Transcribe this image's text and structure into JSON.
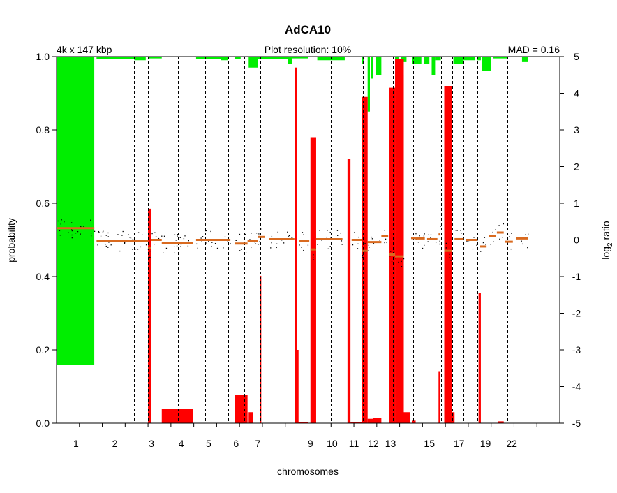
{
  "chart_data": {
    "type": "bar",
    "title": "AdCA10",
    "subtitle_left": "4k x 147 kbp",
    "subtitle_center": "Plot resolution: 10%",
    "subtitle_right": "MAD = 0.16",
    "xlabel": "chromosomes",
    "ylabel_left": "probability",
    "ylabel_right_base": "log",
    "ylabel_right_sub": "2",
    "ylabel_right_rest": " ratio",
    "ylim_left": [
      0,
      1
    ],
    "ylim_right": [
      -5,
      5
    ],
    "left_ticks": [
      "0.0",
      "0.2",
      "0.4",
      "0.6",
      "0.8",
      "1.0"
    ],
    "left_tick_values": [
      0,
      0.2,
      0.4,
      0.6,
      0.8,
      1.0
    ],
    "right_ticks": [
      "-5",
      "-4",
      "-3",
      "-2",
      "-1",
      "0",
      "1",
      "2",
      "3",
      "4",
      "5"
    ],
    "right_tick_values": [
      -5,
      -4,
      -3,
      -2,
      -1,
      0,
      1,
      2,
      3,
      4,
      5
    ],
    "chromosome_axis_total": 22,
    "chromosome_bounds": [
      0,
      1.7,
      3.4,
      4.0,
      5.3,
      6.5,
      7.5,
      8.2,
      8.9,
      9.5,
      10.8,
      11.4,
      12.0,
      12.9,
      13.4,
      14.7,
      15.6,
      16.8,
      17.3,
      17.8,
      18.4,
      19.2,
      19.7,
      20.2,
      20.6
    ],
    "chromosome_labels": [
      {
        "label": "1",
        "pos": 0.85
      },
      {
        "label": "2",
        "pos": 2.55
      },
      {
        "label": "3",
        "pos": 4.15
      },
      {
        "label": "4",
        "pos": 5.45
      },
      {
        "label": "5",
        "pos": 6.65
      },
      {
        "label": "6",
        "pos": 7.85
      },
      {
        "label": "7",
        "pos": 8.8
      },
      {
        "label": "9",
        "pos": 11.1
      },
      {
        "label": "10",
        "pos": 12.05
      },
      {
        "label": "11",
        "pos": 13.0
      },
      {
        "label": "12",
        "pos": 13.85
      },
      {
        "label": "13",
        "pos": 14.6
      },
      {
        "label": "15",
        "pos": 16.3
      },
      {
        "label": "17",
        "pos": 17.6
      },
      {
        "label": "19",
        "pos": 18.75
      },
      {
        "label": "22",
        "pos": 19.9
      }
    ],
    "loss_probability": [
      {
        "from": 0.0,
        "to": 1.65,
        "value": 0.84
      },
      {
        "from": 1.75,
        "to": 3.4,
        "value": 0.007
      },
      {
        "from": 3.4,
        "to": 3.9,
        "value": 0.01
      },
      {
        "from": 4.0,
        "to": 4.6,
        "value": 0.005
      },
      {
        "from": 6.1,
        "to": 7.2,
        "value": 0.007
      },
      {
        "from": 7.2,
        "to": 7.5,
        "value": 0.01
      },
      {
        "from": 7.8,
        "to": 8.05,
        "value": 0.007
      },
      {
        "from": 8.4,
        "to": 8.8,
        "value": 0.03
      },
      {
        "from": 8.8,
        "to": 9.3,
        "value": 0.007
      },
      {
        "from": 9.3,
        "to": 10.1,
        "value": 0.007
      },
      {
        "from": 10.1,
        "to": 10.3,
        "value": 0.02
      },
      {
        "from": 10.3,
        "to": 11.0,
        "value": 0.005
      },
      {
        "from": 11.4,
        "to": 12.6,
        "value": 0.01
      },
      {
        "from": 13.35,
        "to": 13.45,
        "value": 0.02
      },
      {
        "from": 13.6,
        "to": 13.7,
        "value": 0.15
      },
      {
        "from": 13.75,
        "to": 13.85,
        "value": 0.06
      },
      {
        "from": 13.95,
        "to": 14.2,
        "value": 0.05
      },
      {
        "from": 14.8,
        "to": 14.95,
        "value": 0.015
      },
      {
        "from": 15.05,
        "to": 15.3,
        "value": 0.015
      },
      {
        "from": 15.55,
        "to": 15.95,
        "value": 0.02
      },
      {
        "from": 16.05,
        "to": 16.3,
        "value": 0.02
      },
      {
        "from": 16.4,
        "to": 16.55,
        "value": 0.05
      },
      {
        "from": 16.55,
        "to": 16.8,
        "value": 0.01
      },
      {
        "from": 17.35,
        "to": 17.8,
        "value": 0.02
      },
      {
        "from": 17.8,
        "to": 18.3,
        "value": 0.01
      },
      {
        "from": 18.4,
        "to": 18.55,
        "value": 0.01
      },
      {
        "from": 18.6,
        "to": 19.0,
        "value": 0.04
      },
      {
        "from": 19.1,
        "to": 19.7,
        "value": 0.005
      },
      {
        "from": 20.35,
        "to": 20.6,
        "value": 0.015
      }
    ],
    "gain_probability": [
      {
        "from": 4.0,
        "to": 4.15,
        "value": 0.585
      },
      {
        "from": 4.6,
        "to": 5.95,
        "value": 0.04
      },
      {
        "from": 7.8,
        "to": 8.35,
        "value": 0.077
      },
      {
        "from": 8.4,
        "to": 8.6,
        "value": 0.03
      },
      {
        "from": 8.88,
        "to": 8.95,
        "value": 0.402
      },
      {
        "from": 10.45,
        "to": 10.52,
        "value": 0.97
      },
      {
        "from": 10.52,
        "to": 10.58,
        "value": 0.2
      },
      {
        "from": 10.5,
        "to": 11.0,
        "value": 0.003
      },
      {
        "from": 11.1,
        "to": 11.35,
        "value": 0.78
      },
      {
        "from": 12.72,
        "to": 12.85,
        "value": 0.72
      },
      {
        "from": 12.85,
        "to": 13.35,
        "value": 0.003
      },
      {
        "from": 13.35,
        "to": 13.6,
        "value": 0.89
      },
      {
        "from": 13.6,
        "to": 13.85,
        "value": 0.012
      },
      {
        "from": 13.85,
        "to": 14.2,
        "value": 0.014
      },
      {
        "from": 14.55,
        "to": 14.8,
        "value": 0.915
      },
      {
        "from": 14.8,
        "to": 15.18,
        "value": 0.993
      },
      {
        "from": 15.18,
        "to": 15.45,
        "value": 0.03
      },
      {
        "from": 15.55,
        "to": 15.7,
        "value": 0.007
      },
      {
        "from": 16.7,
        "to": 16.78,
        "value": 0.14
      },
      {
        "from": 16.95,
        "to": 17.3,
        "value": 0.92
      },
      {
        "from": 17.3,
        "to": 17.4,
        "value": 0.03
      },
      {
        "from": 18.45,
        "to": 18.55,
        "value": 0.355
      },
      {
        "from": 19.3,
        "to": 19.55,
        "value": 0.005
      }
    ],
    "gain_spikes": [
      {
        "pos": 10.45,
        "value": 0.97
      },
      {
        "pos": 15.15,
        "value": 0.95
      }
    ],
    "segments_log2": [
      {
        "from": 0.0,
        "to": 1.65,
        "value": 0.32
      },
      {
        "from": 1.75,
        "to": 4.0,
        "value": -0.02
      },
      {
        "from": 4.0,
        "to": 4.15,
        "value": -0.22
      },
      {
        "from": 4.15,
        "to": 4.6,
        "value": 0.0
      },
      {
        "from": 4.6,
        "to": 5.95,
        "value": -0.08
      },
      {
        "from": 6.1,
        "to": 7.6,
        "value": 0.0
      },
      {
        "from": 7.8,
        "to": 8.35,
        "value": -0.1
      },
      {
        "from": 8.35,
        "to": 8.8,
        "value": -0.02
      },
      {
        "from": 8.8,
        "to": 9.1,
        "value": 0.08
      },
      {
        "from": 9.3,
        "to": 10.4,
        "value": 0.02
      },
      {
        "from": 10.6,
        "to": 11.05,
        "value": -0.02
      },
      {
        "from": 11.1,
        "to": 11.35,
        "value": -0.26
      },
      {
        "from": 11.35,
        "to": 12.5,
        "value": 0.02
      },
      {
        "from": 12.9,
        "to": 13.35,
        "value": 0.0
      },
      {
        "from": 13.35,
        "to": 13.6,
        "value": -0.3
      },
      {
        "from": 13.6,
        "to": 14.2,
        "value": -0.06
      },
      {
        "from": 14.2,
        "to": 14.5,
        "value": 0.1
      },
      {
        "from": 14.55,
        "to": 14.8,
        "value": -0.4
      },
      {
        "from": 14.8,
        "to": 15.18,
        "value": -0.45
      },
      {
        "from": 15.5,
        "to": 15.7,
        "value": 0.05
      },
      {
        "from": 15.7,
        "to": 16.1,
        "value": 0.04
      },
      {
        "from": 16.2,
        "to": 16.65,
        "value": 0.02
      },
      {
        "from": 16.7,
        "to": 16.78,
        "value": 0.15
      },
      {
        "from": 16.95,
        "to": 17.3,
        "value": -0.3
      },
      {
        "from": 17.4,
        "to": 17.8,
        "value": 0.02
      },
      {
        "from": 17.9,
        "to": 18.4,
        "value": 0.0
      },
      {
        "from": 18.5,
        "to": 18.8,
        "value": -0.18
      },
      {
        "from": 18.9,
        "to": 19.2,
        "value": 0.1
      },
      {
        "from": 19.25,
        "to": 19.55,
        "value": 0.2
      },
      {
        "from": 19.6,
        "to": 19.95,
        "value": -0.05
      },
      {
        "from": 20.1,
        "to": 20.6,
        "value": 0.04
      }
    ],
    "colors": {
      "loss": "#00ee00",
      "gain": "#ff0000",
      "segment": "#d96a1f",
      "points": "#000000",
      "grid": "#000000"
    },
    "grid": false
  }
}
